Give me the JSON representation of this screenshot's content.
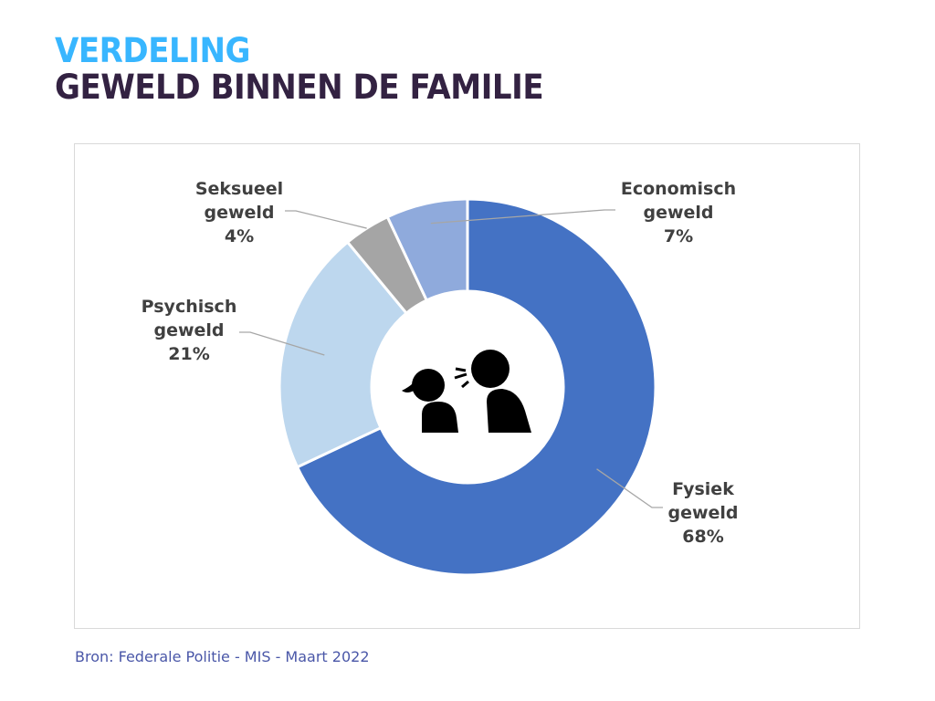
{
  "header": {
    "title_line1": "VERDELING",
    "title_line2": "GEWELD BINNEN DE FAMILIE"
  },
  "footer": {
    "source": "Bron: Federale Politie - MIS - Maart 2022"
  },
  "center_icon": "two-people-arguing-icon",
  "chart_data": {
    "type": "pie",
    "variant": "donut",
    "title": "Verdeling geweld binnen de familie",
    "start": "top",
    "direction": "clockwise",
    "slices": [
      {
        "name": "Fysiek geweld",
        "label_lines": [
          "Fysiek",
          "geweld",
          "68%"
        ],
        "value": 68,
        "color": "#4472c4"
      },
      {
        "name": "Psychisch geweld",
        "label_lines": [
          "Psychisch",
          "geweld",
          "21%"
        ],
        "value": 21,
        "color": "#bdd7ee"
      },
      {
        "name": "Seksueel geweld",
        "label_lines": [
          "Seksueel",
          "geweld",
          "4%"
        ],
        "value": 4,
        "color": "#a5a5a5"
      },
      {
        "name": "Economisch geweld",
        "label_lines": [
          "Economisch",
          "geweld",
          "7%"
        ],
        "value": 7,
        "color": "#8faadc"
      }
    ]
  }
}
